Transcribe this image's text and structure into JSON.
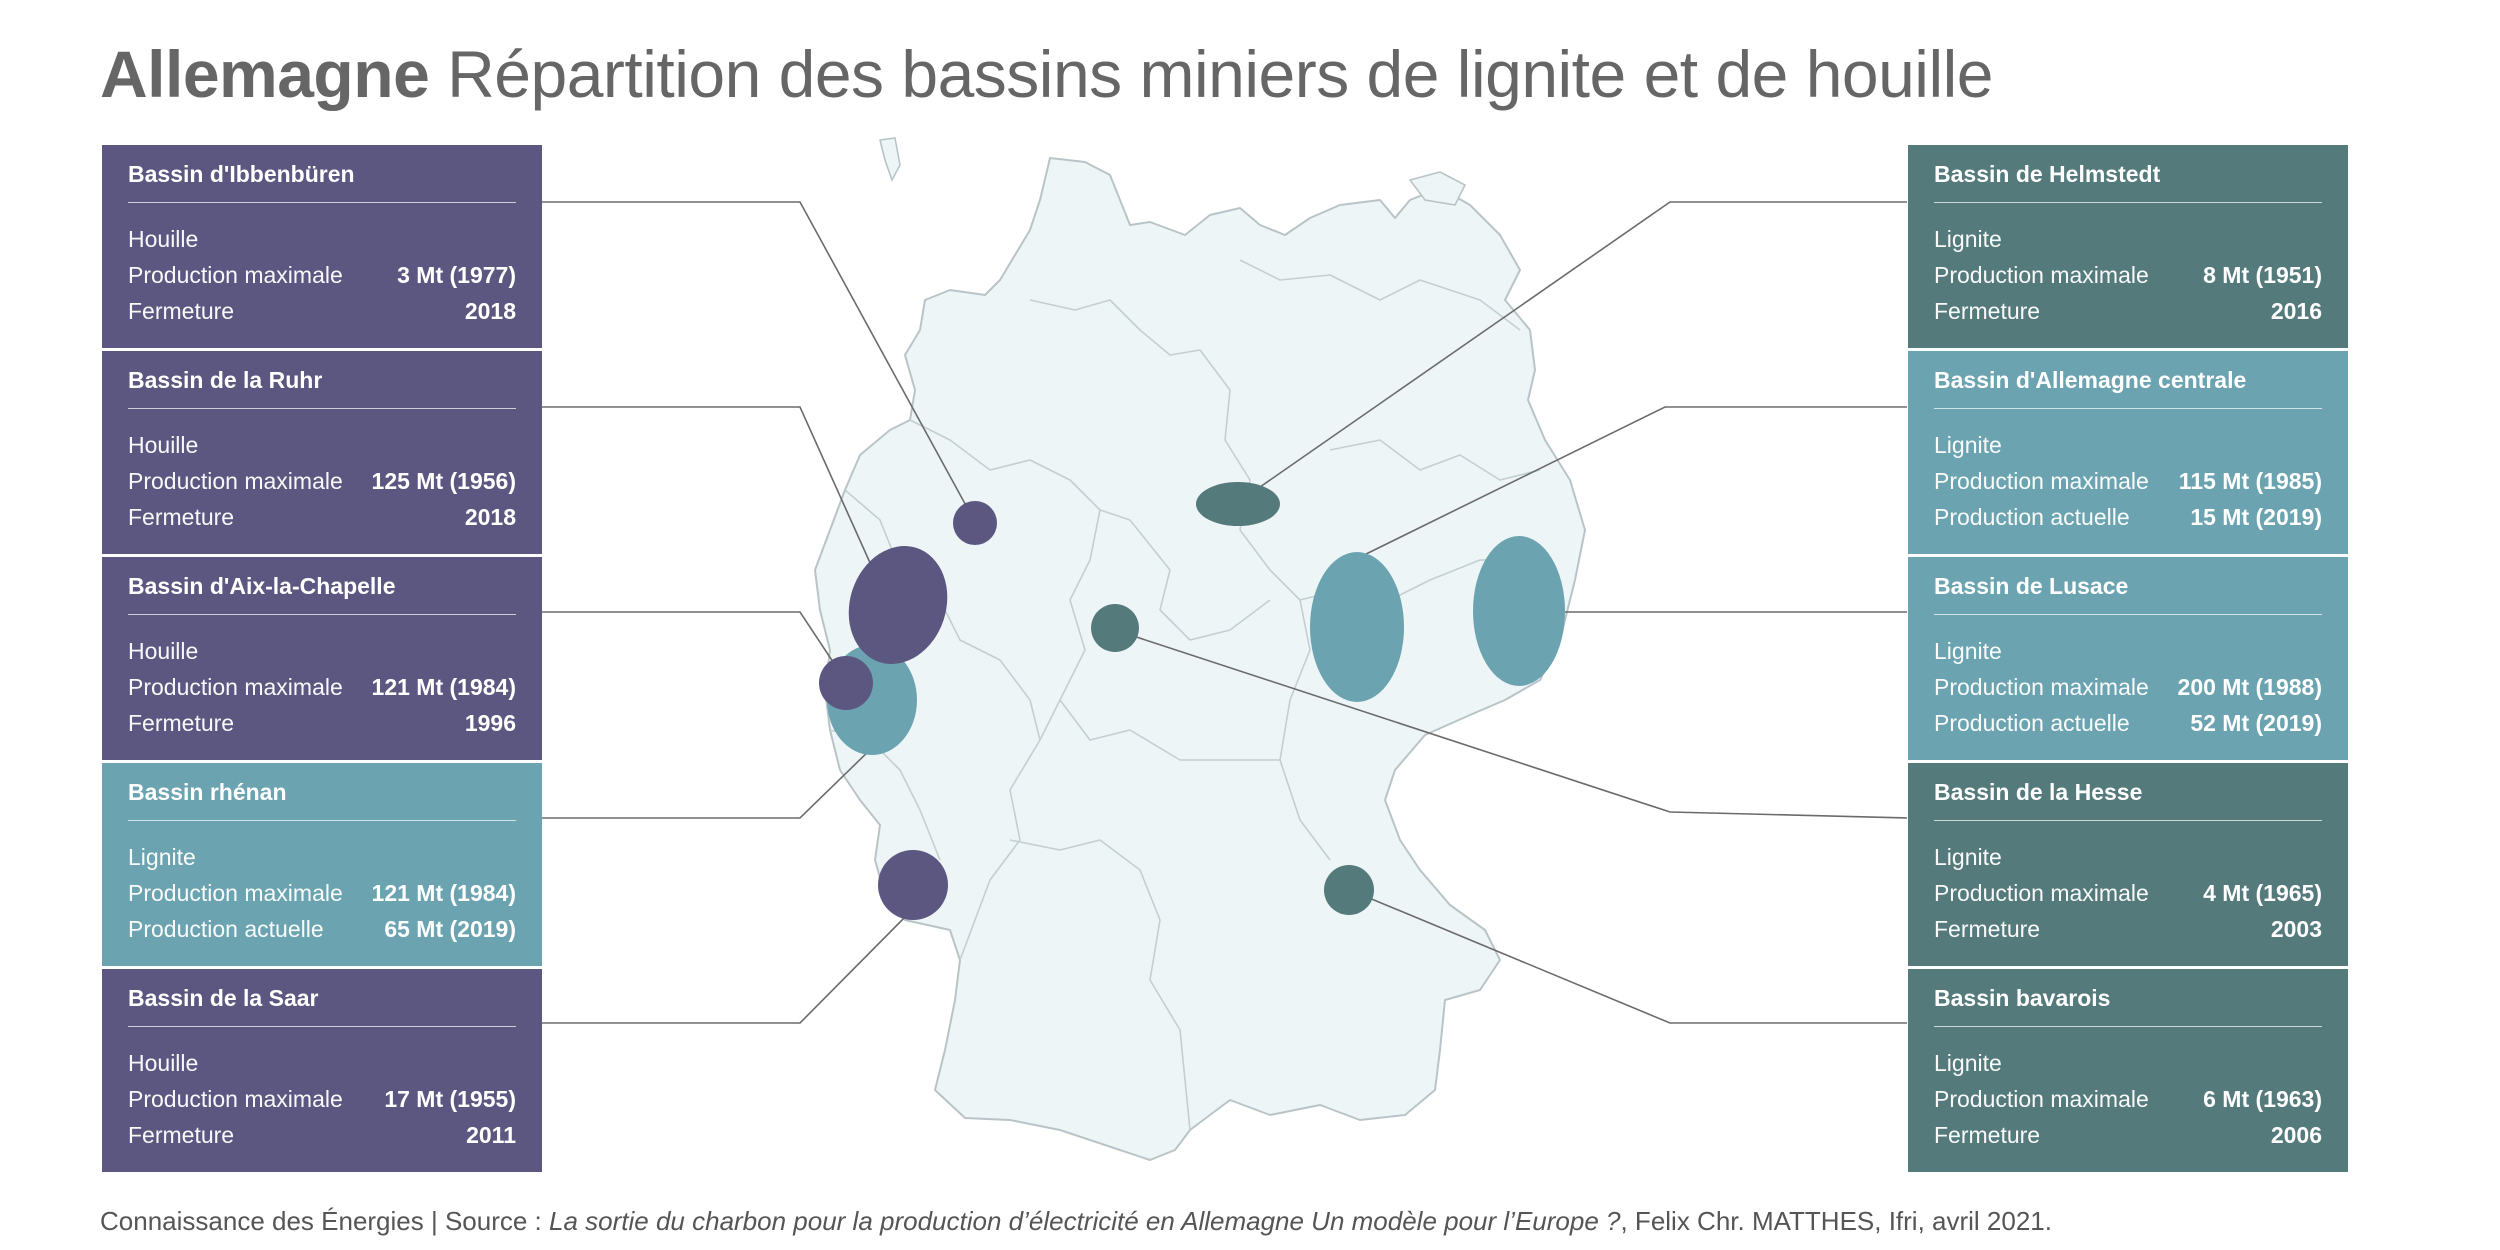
{
  "title": {
    "bold": "Allemagne",
    "rest": "Répartition des bassins miniers de lignite et de houille"
  },
  "colors": {
    "houille": "#5c5780",
    "lignite_light": "#6ba4b0",
    "lignite_dark": "#557a7c",
    "map_fill": "#eef5f7",
    "map_border": "#b9c4c8",
    "leader_line": "#6b6b6b"
  },
  "basins": [
    {
      "id": "ibbenburen",
      "name": "Bassin d'Ibbenbüren",
      "type": "Houille",
      "row1_label": "Production maximale",
      "row1_value": "3 Mt (1977)",
      "row2_label": "Fermeture",
      "row2_value": "2018"
    },
    {
      "id": "ruhr",
      "name": "Bassin de la Ruhr",
      "type": "Houille",
      "row1_label": "Production maximale",
      "row1_value": "125 Mt (1956)",
      "row2_label": "Fermeture",
      "row2_value": "2018"
    },
    {
      "id": "aix",
      "name": "Bassin d'Aix-la-Chapelle",
      "type": "Houille",
      "row1_label": "Production maximale",
      "row1_value": "121 Mt (1984)",
      "row2_label": "Fermeture",
      "row2_value": "1996"
    },
    {
      "id": "rhenan",
      "name": "Bassin rhénan",
      "type": "Lignite",
      "row1_label": "Production maximale",
      "row1_value": "121 Mt (1984)",
      "row2_label": "Production actuelle",
      "row2_value": "65 Mt (2019)"
    },
    {
      "id": "saar",
      "name": "Bassin de la Saar",
      "type": "Houille",
      "row1_label": "Production maximale",
      "row1_value": "17 Mt (1955)",
      "row2_label": "Fermeture",
      "row2_value": "2011"
    },
    {
      "id": "helmstedt",
      "name": "Bassin de Helmstedt",
      "type": "Lignite",
      "row1_label": "Production maximale",
      "row1_value": "8 Mt (1951)",
      "row2_label": "Fermeture",
      "row2_value": "2016"
    },
    {
      "id": "centrale",
      "name": "Bassin d'Allemagne centrale",
      "type": "Lignite",
      "row1_label": "Production maximale",
      "row1_value": "115 Mt (1985)",
      "row2_label": "Production actuelle",
      "row2_value": "15 Mt (2019)"
    },
    {
      "id": "lusace",
      "name": "Bassin de Lusace",
      "type": "Lignite",
      "row1_label": "Production maximale",
      "row1_value": "200 Mt (1988)",
      "row2_label": "Production actuelle",
      "row2_value": "52 Mt (2019)"
    },
    {
      "id": "hesse",
      "name": "Bassin de la Hesse",
      "type": "Lignite",
      "row1_label": "Production maximale",
      "row1_value": "4 Mt (1965)",
      "row2_label": "Fermeture",
      "row2_value": "2003"
    },
    {
      "id": "bavarois",
      "name": "Bassin bavarois",
      "type": "Lignite",
      "row1_label": "Production maximale",
      "row1_value": "6 Mt (1963)",
      "row2_label": "Fermeture",
      "row2_value": "2006"
    }
  ],
  "footer": {
    "prefix": "Connaissance des Énergies | Source : ",
    "italic": "La sortie du charbon pour la production d’électricité en Allemagne Un modèle pour l’Europe ?",
    "suffix": ", Felix Chr. MATTHES, Ifri, avril 2021."
  }
}
